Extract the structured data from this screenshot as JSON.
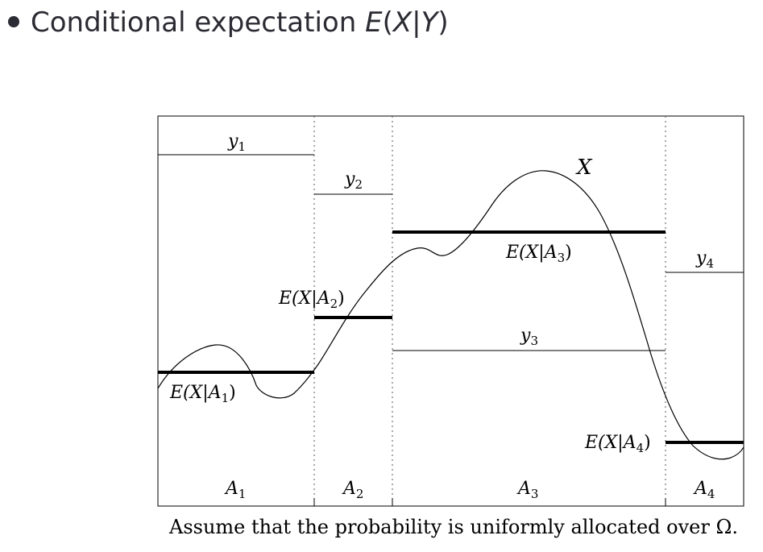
{
  "slide": {
    "title_text": "Conditional expectation ",
    "title_math": "E",
    "title_math_open": "(",
    "title_math_x": "X",
    "title_math_bar": "|",
    "title_math_y": "Y",
    "title_math_close": ")"
  },
  "diagram": {
    "curve_label": "X",
    "y_labels": [
      "y",
      "y",
      "y",
      "y"
    ],
    "y_subscripts": [
      "1",
      "2",
      "3",
      "4"
    ],
    "partition_labels": [
      "A",
      "A",
      "A",
      "A"
    ],
    "partition_subscripts": [
      "1",
      "2",
      "3",
      "4"
    ],
    "expectation_labels": [
      "E(X|A",
      "E(X|A",
      "E(X|A",
      "E(X|A"
    ],
    "expectation_subscripts": [
      "1",
      "2",
      "3",
      "4"
    ],
    "expectation_close": ")"
  },
  "caption": "Assume that the probability is uniformly allocated over Ω."
}
